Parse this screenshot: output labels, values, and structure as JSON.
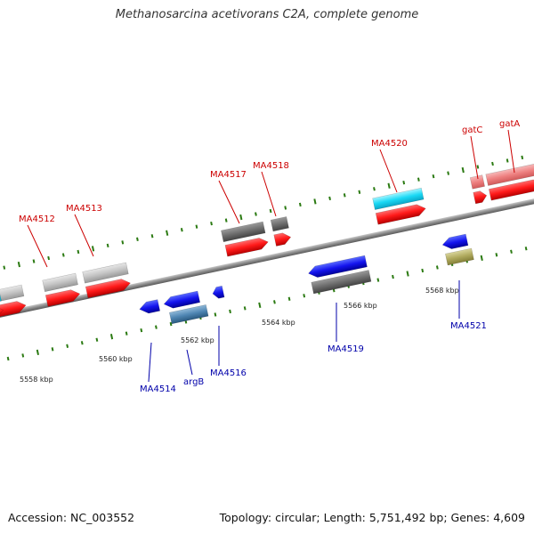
{
  "title": "Methanosarcina acetivorans C2A, complete genome",
  "footer": {
    "accession": "Accession: NC_003552",
    "summary": "Topology: circular; Length: 5,751,492 bp; Genes: 4,609"
  },
  "colors": {
    "forward_label": "#cc0000",
    "reverse_label": "#0000aa",
    "tick": "#2b7a12",
    "backbone": "#8a8a8a"
  },
  "axis_labels": [
    "5558 kbp",
    "5560 kbp",
    "5562 kbp",
    "5564 kbp",
    "5566 kbp",
    "5568 kbp"
  ],
  "forward_labels": [
    "MA4512",
    "MA4513",
    "MA4517",
    "MA4518",
    "MA4520",
    "gatC",
    "gatA"
  ],
  "reverse_labels": [
    "MA4514",
    "argB",
    "MA4516",
    "MA4519",
    "MA4521"
  ]
}
